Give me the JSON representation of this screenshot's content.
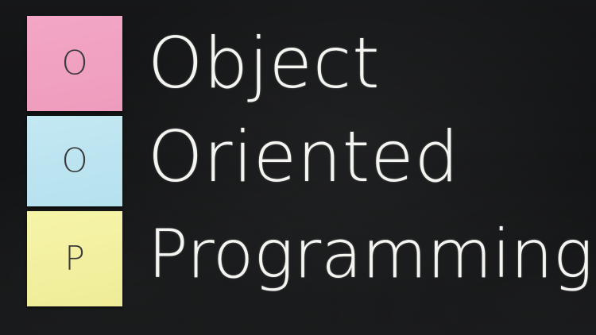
{
  "notes": {
    "first": {
      "letter": "O",
      "color": "#f3a6c6"
    },
    "second": {
      "letter": "O",
      "color": "#c3e8f3"
    },
    "third": {
      "letter": "P",
      "color": "#f6f4a8"
    }
  },
  "words": {
    "first": "Object",
    "second": "Oriented",
    "third": "Programming"
  },
  "colors": {
    "chalkboard": "#0f1011",
    "chalk": "#f4f4f1"
  }
}
